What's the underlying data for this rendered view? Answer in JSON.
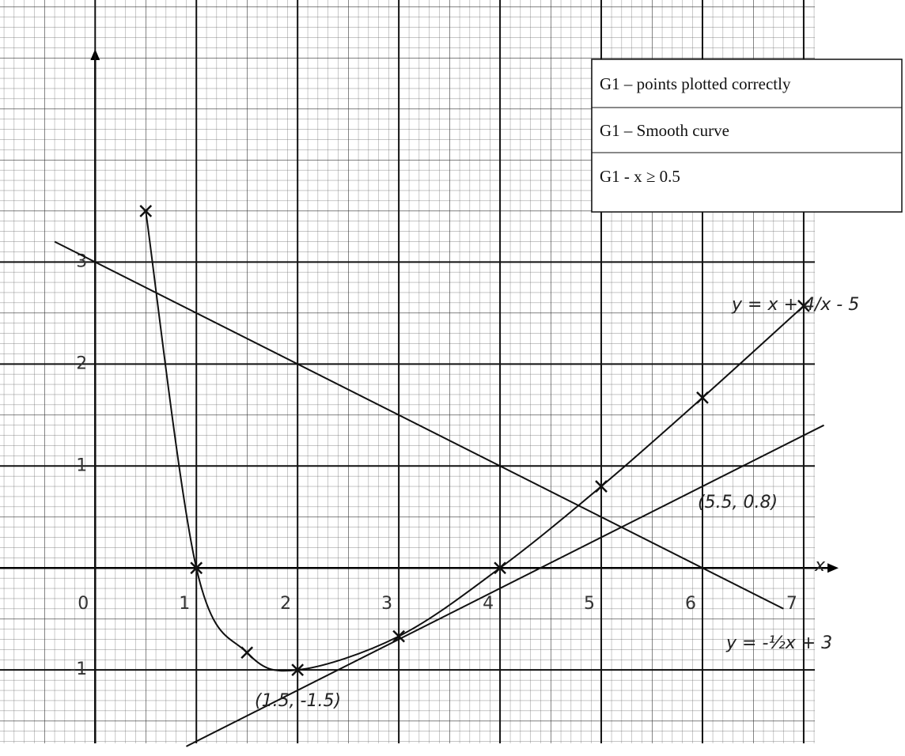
{
  "chart_data": {
    "type": "line",
    "xlabel": "x",
    "xlim": [
      -0.94,
      7.11
    ],
    "ylim": [
      -1.72,
      5.57
    ],
    "xticks": [
      0,
      1,
      2,
      3,
      4,
      5,
      6,
      7
    ],
    "yticks": [
      -1,
      1,
      2,
      3
    ],
    "grid": true,
    "series": [
      {
        "color": "#111111",
        "smooth": true,
        "markers": true,
        "x": [
          0.5,
          1,
          1.5,
          2,
          3,
          4,
          5,
          6,
          7
        ],
        "values": [
          3.5,
          0,
          -0.83,
          -1,
          -0.67,
          0,
          0.8,
          1.67,
          2.57
        ]
      },
      {
        "color": "#111111",
        "smooth": false,
        "markers": false,
        "x": [
          -0.4,
          6.8
        ],
        "values": [
          3.2,
          -0.4
        ]
      },
      {
        "color": "#111111",
        "smooth": false,
        "markers": false,
        "x": [
          0.9,
          7.2
        ],
        "values": [
          -1.75,
          1.4
        ]
      }
    ],
    "annotations": [
      "y = x + 4/x - 5",
      "y = -½x + 3",
      "(1.5, -1.5)",
      "(5.5, 0.8)"
    ]
  },
  "marking_scheme": [
    "G1 – points plotted correctly",
    "G1 – Smooth curve",
    "G1 - x ≥ 0.5"
  ]
}
